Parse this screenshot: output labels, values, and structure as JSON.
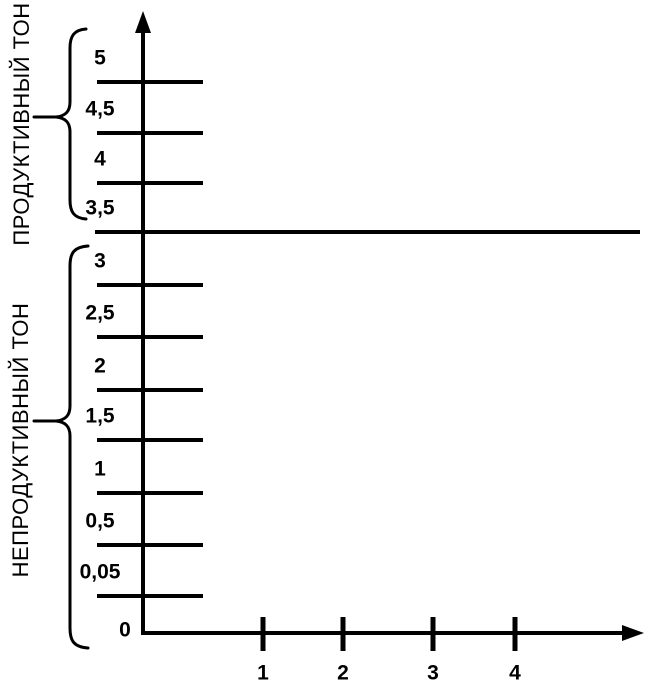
{
  "chart_data": {
    "type": "line",
    "title": "",
    "series": [],
    "x_axis": {
      "label": "",
      "tick_labels": [
        "1",
        "2",
        "3",
        "4"
      ],
      "range": [
        0,
        4.6
      ]
    },
    "y_axis": {
      "label": "",
      "tick_labels": [
        "5",
        "4,5",
        "4",
        "3,5",
        "3",
        "2,5",
        "2",
        "1,5",
        "1",
        "0,5",
        "0,05",
        "0"
      ],
      "range": [
        0,
        5.3
      ]
    },
    "divider_value": "3,5",
    "zones": [
      {
        "label": "ПРОДУКТИВНЫЙ ТОН",
        "covers_ticks": [
          "3,5",
          "4",
          "4,5",
          "5"
        ]
      },
      {
        "label": "НЕПРОДУКТИВНЫЙ ТОН",
        "covers_ticks": [
          "0",
          "0,05",
          "0,5",
          "1",
          "1,5",
          "2",
          "2,5",
          "3"
        ]
      }
    ],
    "grid": false,
    "legend": null,
    "colors": {
      "axis": "#000000",
      "text": "#000000",
      "background": "#ffffff"
    }
  }
}
